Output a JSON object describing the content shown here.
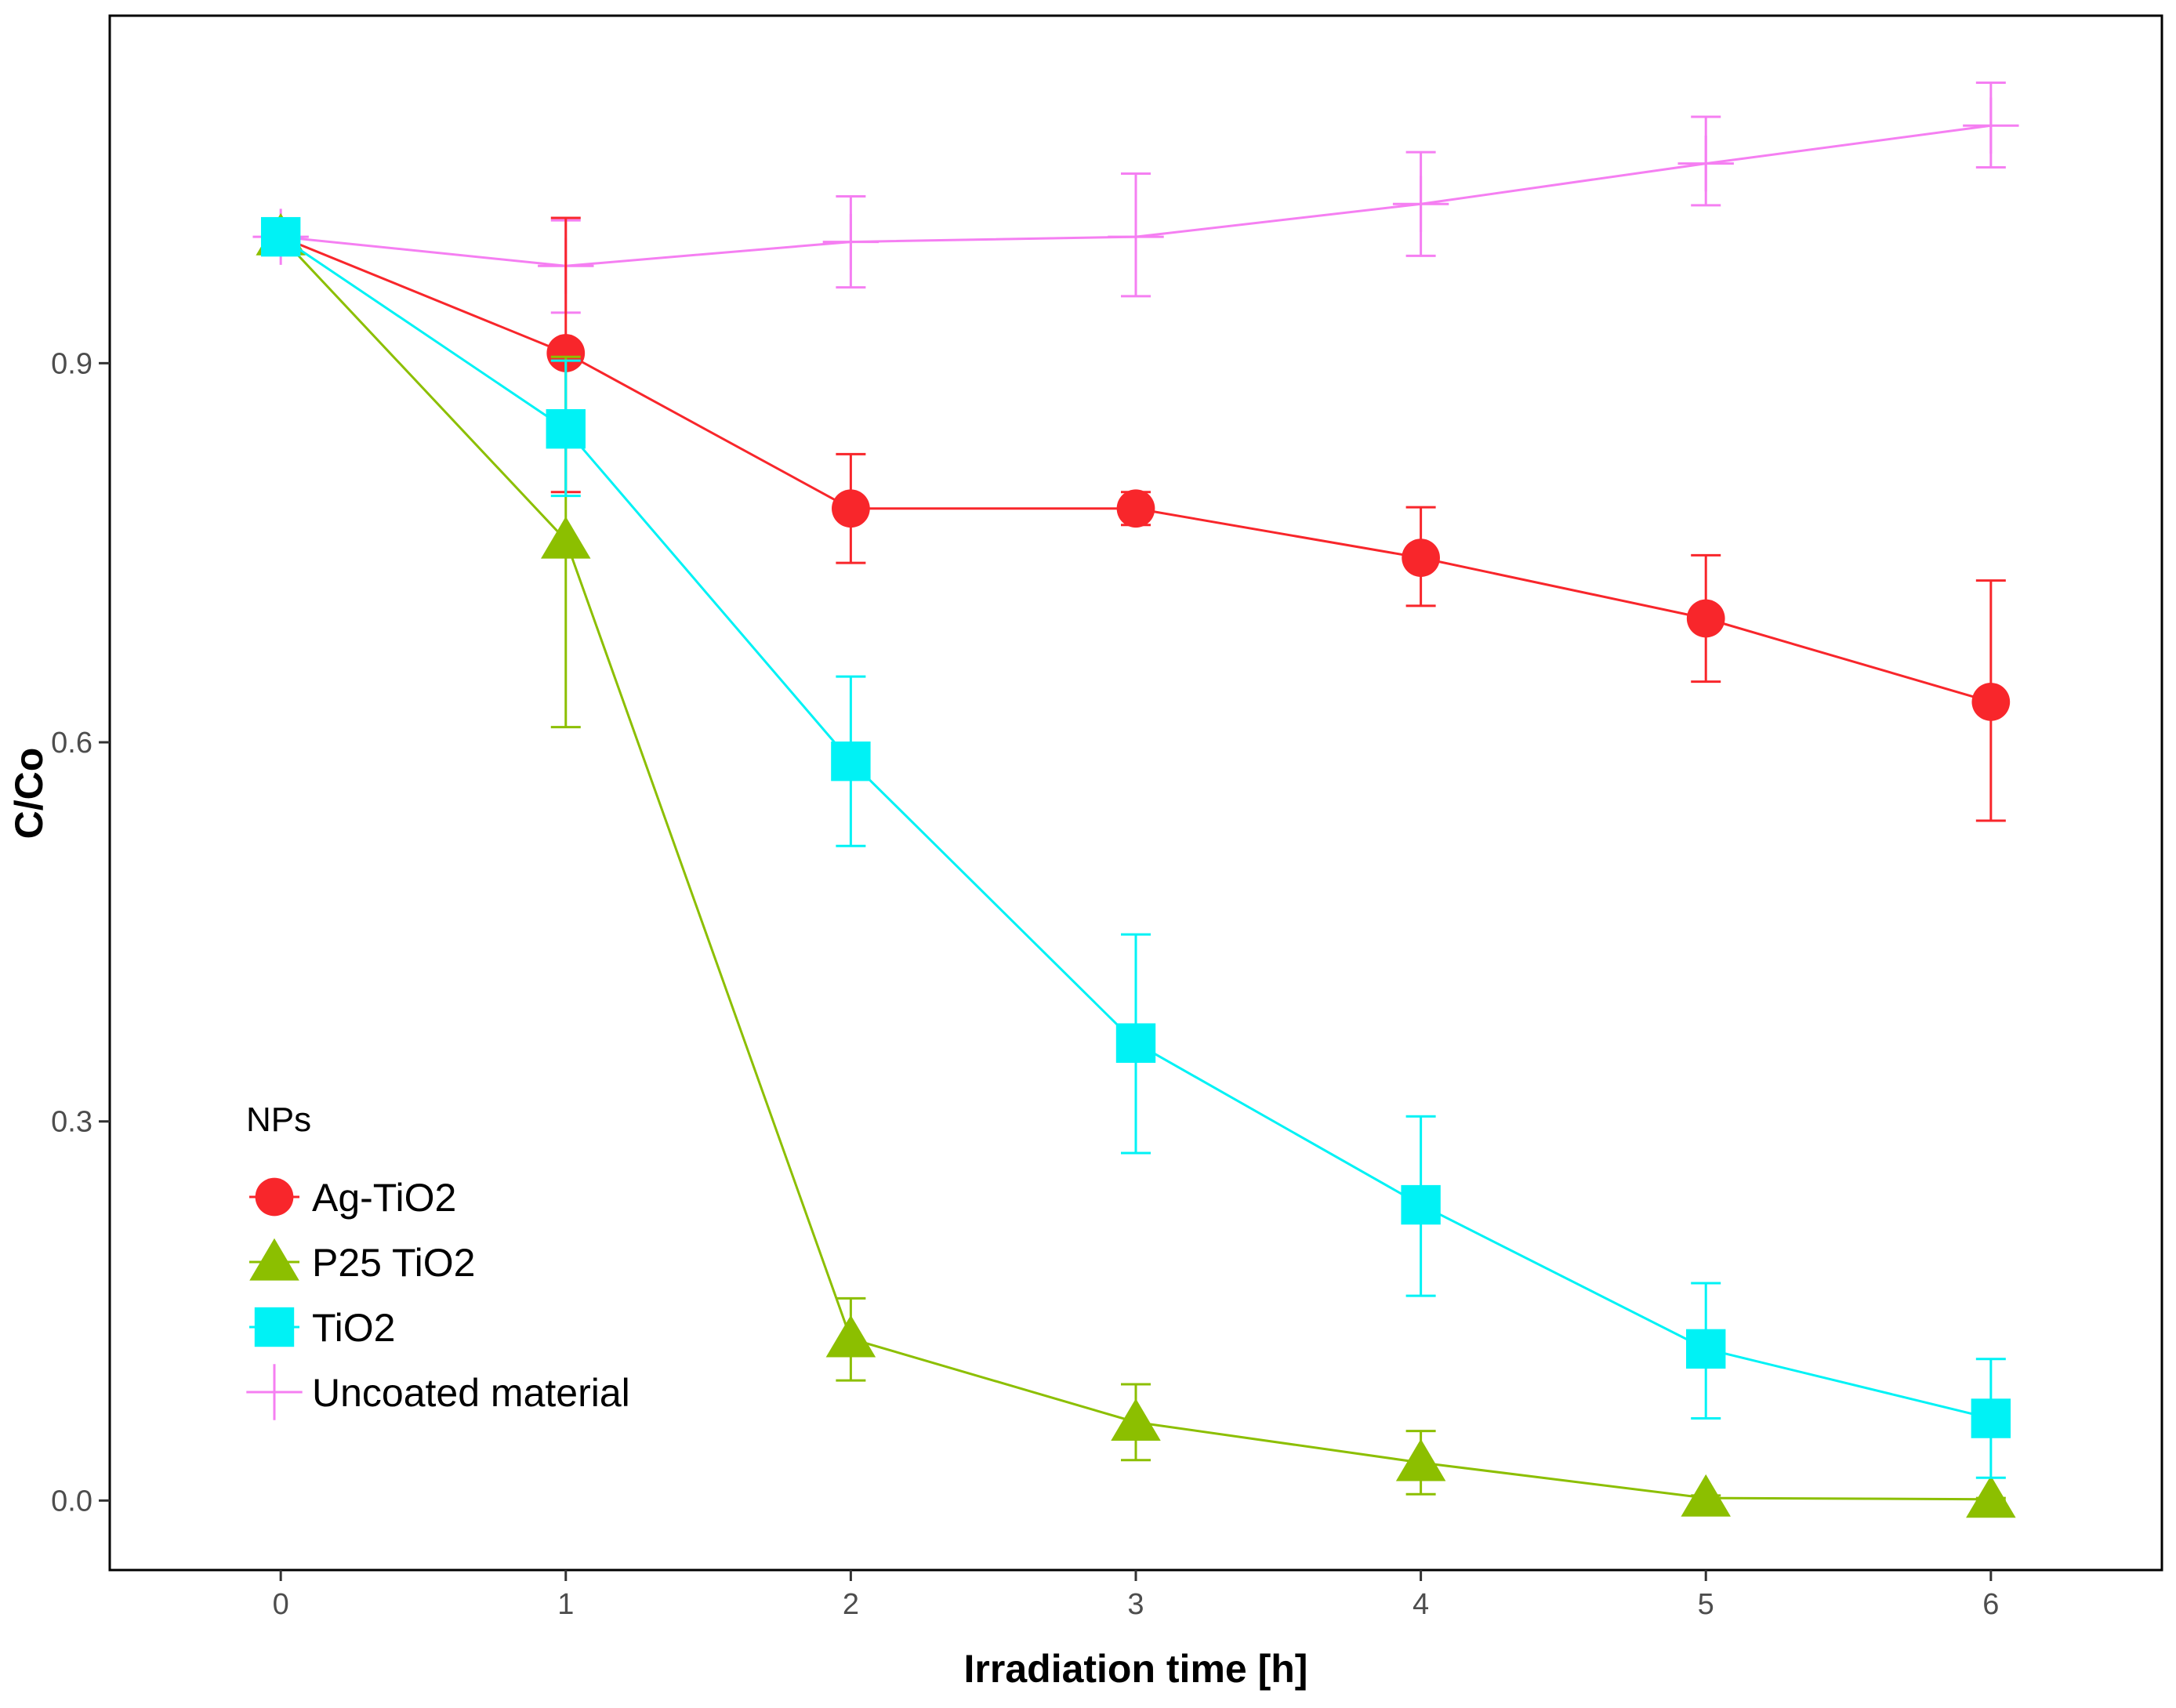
{
  "chart_data": {
    "type": "line",
    "title": "",
    "xlabel": "Irradiation time [h]",
    "ylabel": "C/Co",
    "x": [
      0,
      1,
      2,
      3,
      4,
      5,
      6
    ],
    "xlim": [
      -0.6,
      6.6
    ],
    "ylim": [
      -0.055,
      1.175
    ],
    "x_ticks": [
      0,
      1,
      2,
      3,
      4,
      5,
      6
    ],
    "x_tick_labels": [
      "0",
      "1",
      "2",
      "3",
      "4",
      "5",
      "6"
    ],
    "y_ticks": [
      0.0,
      0.3,
      0.6,
      0.9
    ],
    "y_tick_labels": [
      "0.0",
      "0.3",
      "0.6",
      "0.9"
    ],
    "grid": false,
    "legend": {
      "title": "NPs",
      "position": "bottom-left inside"
    },
    "series": [
      {
        "name": "Ag-TiO2",
        "color": "#f8262b",
        "marker": "circle",
        "values": [
          1.0,
          0.908,
          0.785,
          0.785,
          0.746,
          0.698,
          0.632
        ],
        "error_lower": [
          1.0,
          0.798,
          0.742,
          0.772,
          0.708,
          0.648,
          0.538
        ],
        "error_upper": [
          1.0,
          1.015,
          0.828,
          0.798,
          0.786,
          0.748,
          0.728
        ]
      },
      {
        "name": "P25 TiO2",
        "color": "#8cbf00",
        "marker": "triangle",
        "values": [
          1.0,
          0.76,
          0.128,
          0.062,
          0.03,
          0.002,
          0.001
        ],
        "error_lower": [
          1.0,
          0.612,
          0.095,
          0.032,
          0.005,
          0.0,
          0.0
        ],
        "error_upper": [
          1.0,
          0.905,
          0.16,
          0.092,
          0.055,
          0.004,
          0.002
        ]
      },
      {
        "name": "TiO2",
        "color": "#00f2f5",
        "marker": "square",
        "values": [
          1.0,
          0.848,
          0.585,
          0.362,
          0.234,
          0.12,
          0.065
        ],
        "error_lower": [
          1.0,
          0.795,
          0.518,
          0.275,
          0.162,
          0.065,
          0.018
        ],
        "error_upper": [
          1.0,
          0.902,
          0.652,
          0.448,
          0.304,
          0.172,
          0.112
        ]
      },
      {
        "name": "Uncoated material",
        "color": "#f57ff2",
        "marker": "cross",
        "values": [
          1.0,
          0.977,
          0.996,
          1.0,
          1.026,
          1.058,
          1.088
        ],
        "error_lower": [
          1.0,
          0.94,
          0.96,
          0.953,
          0.985,
          1.025,
          1.055
        ],
        "error_upper": [
          1.0,
          1.013,
          1.032,
          1.05,
          1.067,
          1.095,
          1.122
        ]
      }
    ]
  }
}
